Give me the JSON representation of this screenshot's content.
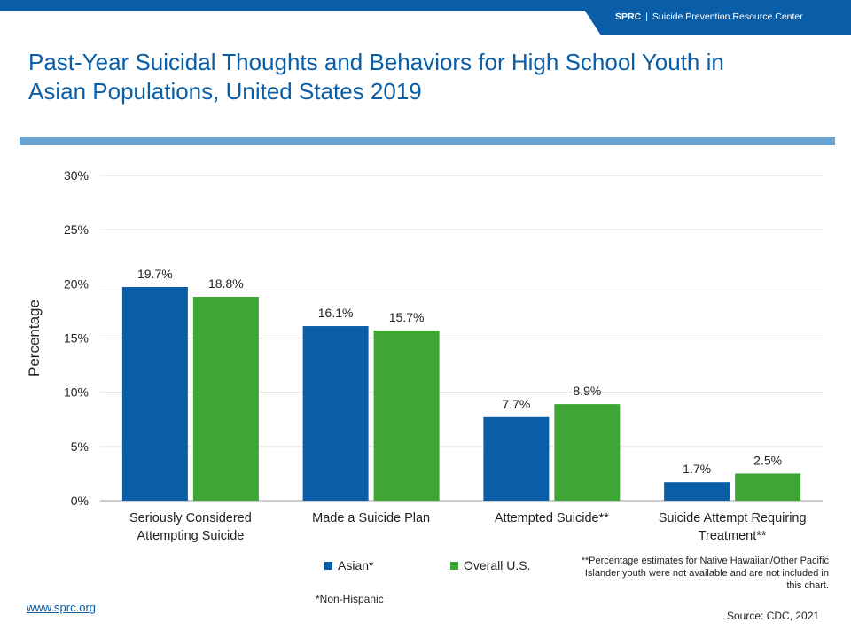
{
  "header": {
    "brand_short": "SPRC",
    "brand_separator": "|",
    "brand_name": "Suicide Prevention Resource Center"
  },
  "page_title": "Past-Year Suicidal Thoughts and Behaviors for High School Youth in Asian Populations, United States 2019",
  "colors": {
    "brand": "#0a5ea8",
    "rule": "#6aa4d4",
    "asian": "#0a5ea8",
    "overall": "#3fa535"
  },
  "chart_data": {
    "type": "bar",
    "categories": [
      [
        "Seriously Considered",
        "Attempting Suicide"
      ],
      [
        "Made a Suicide Plan"
      ],
      [
        "Attempted Suicide**"
      ],
      [
        "Suicide Attempt Requiring",
        "Treatment**"
      ]
    ],
    "series": [
      {
        "name": "Asian*",
        "values": [
          19.7,
          16.1,
          7.7,
          1.7
        ],
        "labels": [
          "19.7%",
          "16.1%",
          "7.7%",
          "1.7%"
        ],
        "color": "#0a5ea8"
      },
      {
        "name": "Overall U.S.",
        "values": [
          18.8,
          15.7,
          8.9,
          2.5
        ],
        "labels": [
          "18.8%",
          "15.7%",
          "8.9%",
          "2.5%"
        ],
        "color": "#3fa535"
      }
    ],
    "ylabel": "Percentage",
    "ylim": [
      0,
      30
    ],
    "yticks": [
      0,
      5,
      10,
      15,
      20,
      25,
      30
    ],
    "ytick_labels": [
      "0%",
      "5%",
      "10%",
      "15%",
      "20%",
      "25%",
      "30%"
    ],
    "grid": true,
    "legend_position": "bottom"
  },
  "footnotes": {
    "estimates_note": "**Percentage estimates for Native Hawaiian/Other Pacific Islander youth were not available and are not included in this chart.",
    "non_hispanic": "*Non-Hispanic"
  },
  "footer": {
    "website": "www.sprc.org",
    "source": "Source: CDC, 2021"
  }
}
